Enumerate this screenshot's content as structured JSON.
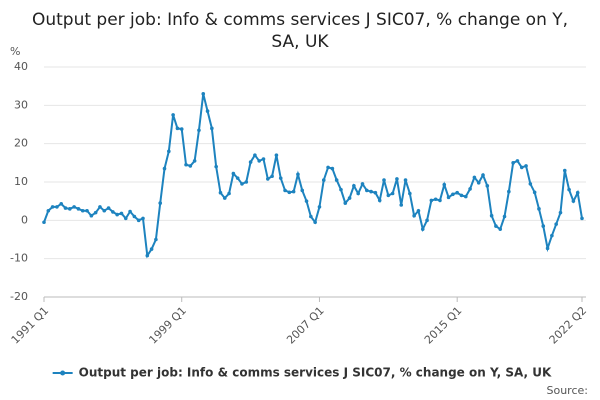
{
  "chart_data": {
    "type": "line",
    "title": "Output per job: Info & comms services J SIC07, % change on Y, SA, UK",
    "y_label": "%",
    "source": "Source:",
    "categories": [
      "1991 Q1",
      null,
      null,
      null,
      null,
      null,
      null,
      null,
      null,
      null,
      null,
      null,
      null,
      null,
      null,
      null,
      null,
      null,
      null,
      null,
      null,
      null,
      null,
      null,
      null,
      null,
      null,
      null,
      null,
      null,
      null,
      null,
      "1999 Q1",
      null,
      null,
      null,
      null,
      null,
      null,
      null,
      null,
      null,
      null,
      null,
      null,
      null,
      null,
      null,
      null,
      null,
      null,
      null,
      null,
      null,
      null,
      null,
      null,
      null,
      null,
      null,
      null,
      null,
      null,
      null,
      "2007 Q1",
      null,
      null,
      null,
      null,
      null,
      null,
      null,
      null,
      null,
      null,
      null,
      null,
      null,
      null,
      null,
      null,
      null,
      null,
      null,
      null,
      null,
      null,
      null,
      null,
      null,
      null,
      null,
      null,
      null,
      null,
      null,
      "2015 Q1",
      null,
      null,
      null,
      null,
      null,
      null,
      null,
      null,
      null,
      null,
      null,
      null,
      null,
      null,
      null,
      null,
      null,
      null,
      null,
      null,
      null,
      null,
      null,
      null,
      null,
      null,
      null,
      null,
      "2022 Q2"
    ],
    "series": [
      {
        "name": "Output per job: Info & comms services J SIC07, % change on Y, SA, UK",
        "color": "#1d83bf",
        "values": [
          -0.5,
          2.5,
          3.5,
          3.5,
          4.3,
          3.2,
          3,
          3.5,
          3,
          2.5,
          2.5,
          1.2,
          2,
          3.5,
          2.5,
          3.2,
          2.2,
          1.5,
          1.8,
          0.5,
          2.3,
          1,
          0,
          0.5,
          -9.2,
          -7.5,
          -5,
          4.5,
          13.5,
          18,
          27.5,
          24,
          23.8,
          14.5,
          14.2,
          15.5,
          23.5,
          33,
          28.5,
          24,
          14,
          7.2,
          5.8,
          7,
          12.2,
          11,
          9.5,
          10,
          15.2,
          17,
          15.5,
          16,
          10.8,
          11.5,
          17,
          11,
          7.8,
          7.3,
          7.5,
          12,
          7.8,
          5,
          1,
          -0.5,
          3.5,
          10.5,
          13.8,
          13.5,
          10.5,
          8,
          4.5,
          5.8,
          9,
          7,
          9.5,
          7.8,
          7.5,
          7.2,
          5.2,
          10.5,
          6.5,
          7,
          10.8,
          4,
          10.5,
          7,
          1.2,
          2.5,
          -2.3,
          0,
          5.2,
          5.5,
          5.2,
          9.3,
          6,
          6.8,
          7.2,
          6.5,
          6.2,
          8.2,
          11.2,
          9.8,
          11.8,
          9,
          1.2,
          -1.5,
          -2.3,
          1,
          7.5,
          15,
          15.5,
          13.8,
          14.2,
          9.5,
          7.3,
          3,
          -1.5,
          -7.3,
          -4,
          -1,
          2,
          13,
          8,
          5,
          7.2,
          0.5
        ]
      }
    ],
    "ylim": [
      -20,
      40
    ],
    "yticks": [
      -20,
      -10,
      0,
      10,
      20,
      30,
      40
    ],
    "grid": true
  }
}
